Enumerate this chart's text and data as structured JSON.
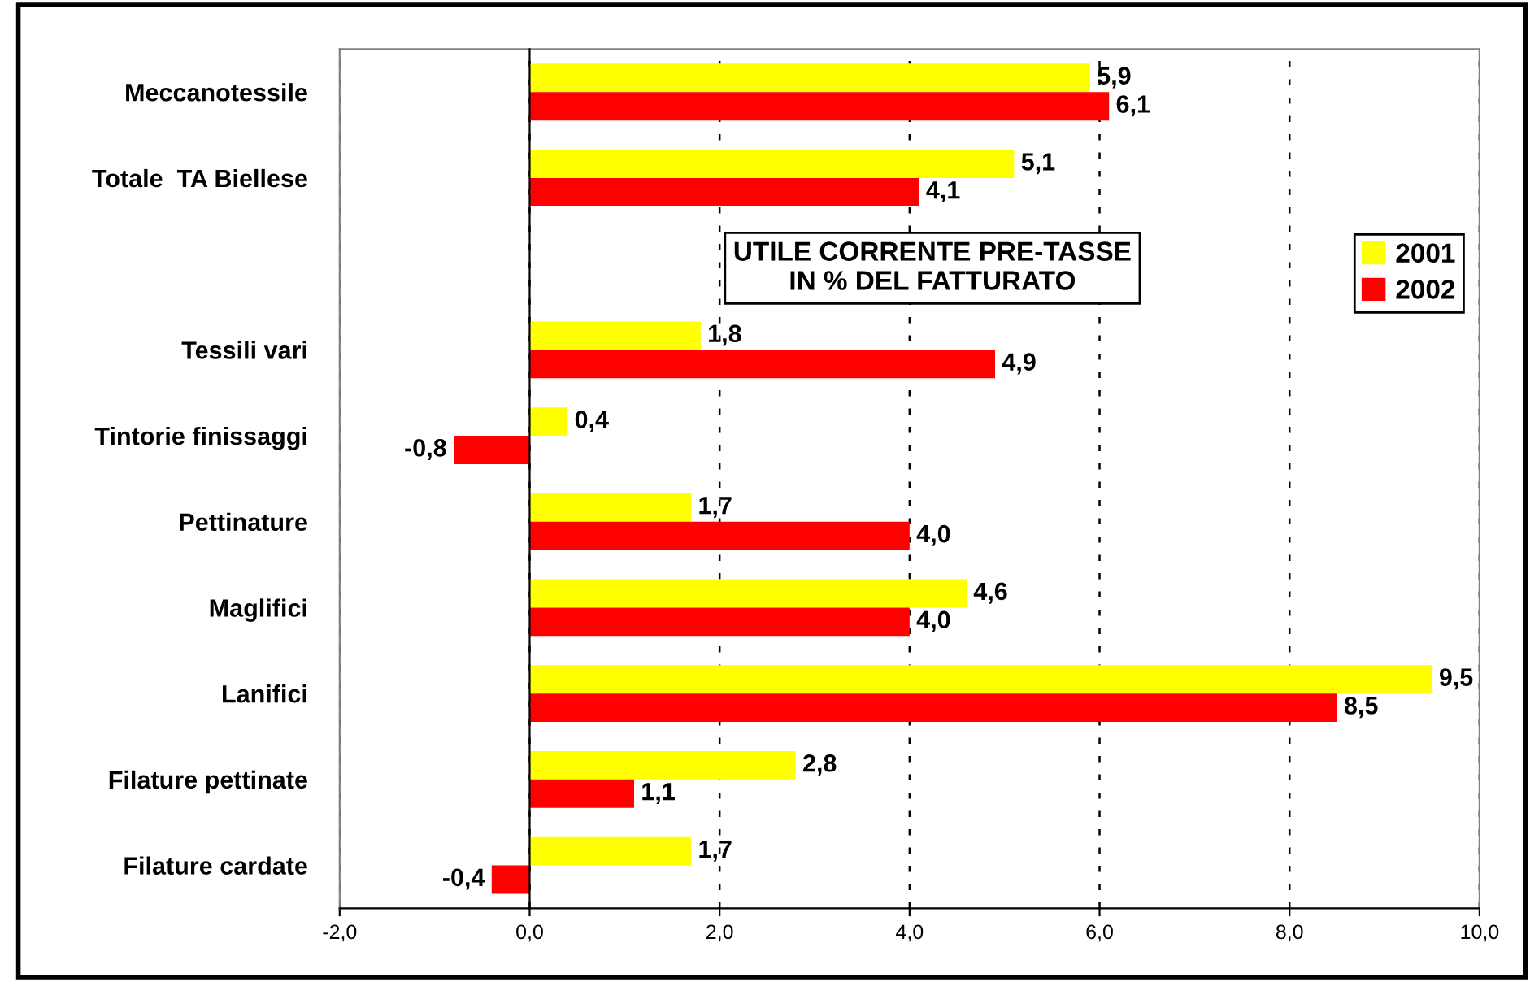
{
  "chart_data": {
    "type": "bar",
    "orientation": "horizontal",
    "title": "UTILE CORRENTE PRE-TASSE\nIN % DEL FATTURATO",
    "categories": [
      "Meccanotessile",
      "Totale  TA Biellese",
      null,
      "Tessili vari",
      "Tintorie finissaggi",
      "Pettinature",
      "Maglifici",
      "Lanifici",
      "Filature pettinate",
      "Filature cardate"
    ],
    "series": [
      {
        "name": "2001",
        "color": "#ffff00",
        "values": [
          5.9,
          5.1,
          null,
          1.8,
          0.4,
          1.7,
          4.6,
          9.5,
          2.8,
          1.7
        ],
        "value_labels": [
          "5,9",
          "5,1",
          null,
          "1,8",
          "0,4",
          "1,7",
          "4,6",
          "9,5",
          "2,8",
          "1,7"
        ]
      },
      {
        "name": "2002",
        "color": "#ff0000",
        "values": [
          6.1,
          4.1,
          null,
          4.9,
          -0.8,
          4.0,
          4.0,
          8.5,
          1.1,
          -0.4
        ],
        "value_labels": [
          "6,1",
          "4,1",
          null,
          "4,9",
          "-0,8",
          "4,0",
          "4,0",
          "8,5",
          "1,1",
          "-0,4"
        ]
      }
    ],
    "xlim": [
      -2,
      10
    ],
    "xticks": [
      {
        "value": -2,
        "label": "-2,0"
      },
      {
        "value": 0,
        "label": "0,0"
      },
      {
        "value": 2,
        "label": "2,0"
      },
      {
        "value": 4,
        "label": "4,0"
      },
      {
        "value": 6,
        "label": "6,0"
      },
      {
        "value": 8,
        "label": "8,0"
      },
      {
        "value": 10,
        "label": "10,0"
      }
    ],
    "grid": "x",
    "legend": "top right"
  }
}
